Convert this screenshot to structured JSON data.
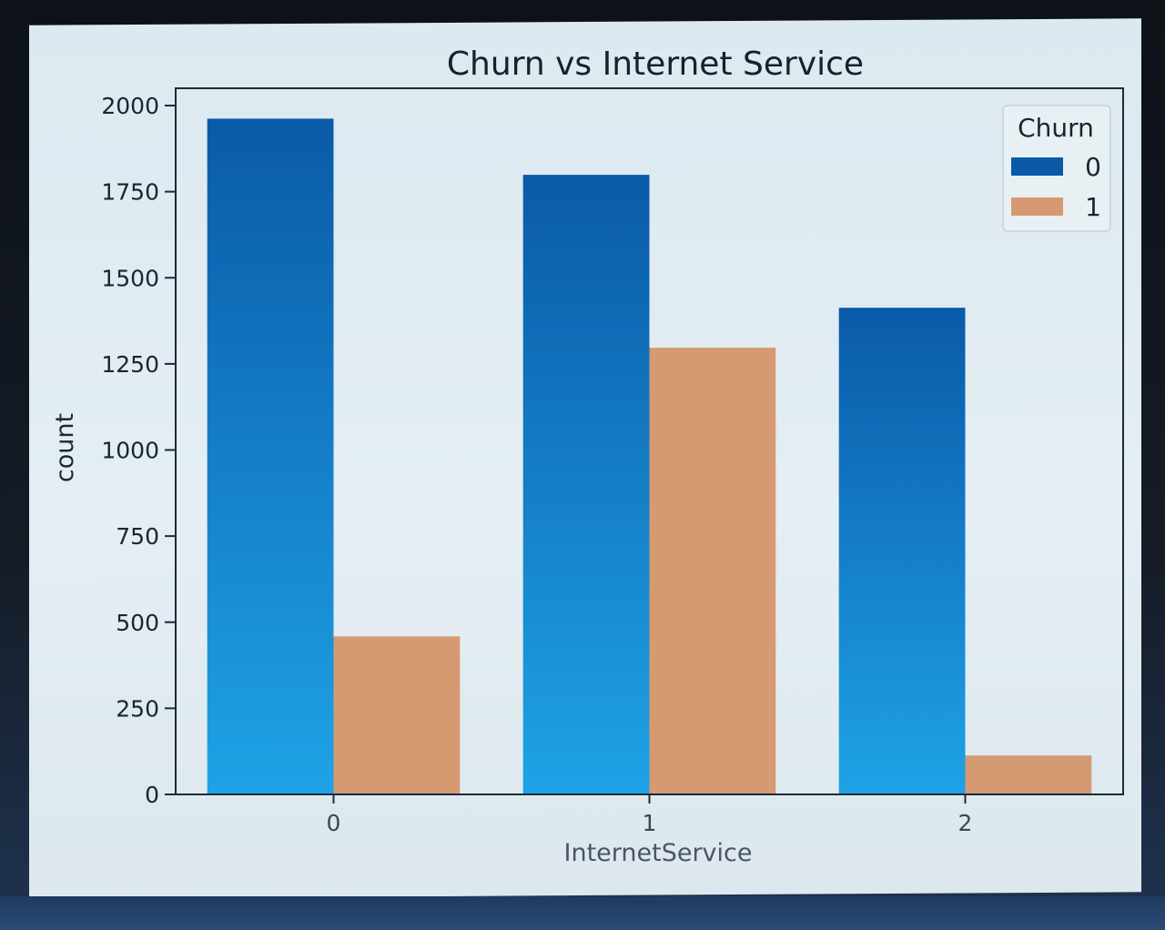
{
  "chart_data": {
    "type": "bar",
    "title": "Churn vs Internet Service",
    "xlabel": "InternetService",
    "ylabel": "count",
    "categories": [
      "0",
      "1",
      "2"
    ],
    "series": [
      {
        "name": "0",
        "values": [
          1962,
          1799,
          1413
        ]
      },
      {
        "name": "1",
        "values": [
          459,
          1297,
          113
        ]
      }
    ],
    "yticks": [
      "0",
      "250",
      "500",
      "750",
      "1000",
      "1250",
      "1500",
      "1750",
      "2000"
    ],
    "ylim": [
      0,
      2050
    ],
    "grid": false,
    "legend": {
      "title": "Churn",
      "placement": "top-right"
    },
    "colors": {
      "series0_top": "#0a5aa8",
      "series0_bottom": "#1fa3e6",
      "series1": "#d59a72",
      "axes": "#1c2a3c"
    }
  }
}
